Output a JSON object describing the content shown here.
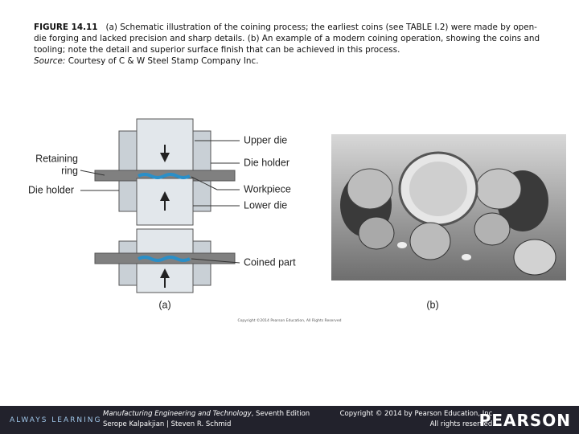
{
  "caption": {
    "label": "FIGURE 14.11",
    "text": "(a) Schematic illustration of the coining process; the earliest coins (see TABLE I.2) were made by open-die forging and lacked precision and sharp details. (b) An example of a modern coining operation, showing the coins and tooling; note the detail and superior surface finish that can be achieved in this process.",
    "source_label": "Source:",
    "source_text": "Courtesy of C & W Steel Stamp Company Inc."
  },
  "diagram": {
    "upper_die": "Upper die",
    "die_holder_right": "Die holder",
    "workpiece": "Workpiece",
    "lower_die": "Lower die",
    "coined_part": "Coined part",
    "retaining_ring": [
      "Retaining",
      "ring"
    ],
    "die_holder_left": "Die holder",
    "label_a": "(a)",
    "label_b": "(b)",
    "copyright": "Copyright ©2014 Pearson Education, All Rights Reserved"
  },
  "footer": {
    "tagline": "ALWAYS LEARNING",
    "book_title": "Manufacturing Engineering and Technology",
    "edition": ", Seventh Edition",
    "authors": "Serope Kalpakjian | Steven R. Schmid",
    "copyright": "Copyright © 2014 by Pearson Education, Inc.",
    "rights": "All rights reserved.",
    "brand": "PEARSON"
  }
}
